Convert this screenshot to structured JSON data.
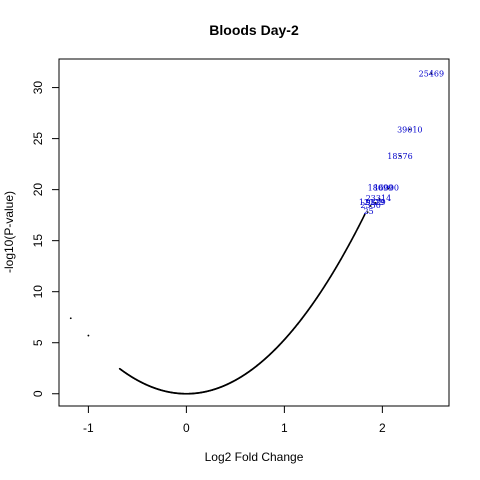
{
  "chart_data": {
    "type": "scatter",
    "title": "Bloods Day-2",
    "xlabel": "Log2 Fold Change",
    "ylabel": "-log10(P-value)",
    "xlim": [
      -1.3,
      2.68
    ],
    "ylim": [
      -1.2,
      32.8
    ],
    "xticks": [
      -1,
      0,
      1,
      2
    ],
    "yticks": [
      0,
      5,
      10,
      15,
      20,
      25,
      30
    ],
    "grid": false,
    "legend": "none",
    "point_color": "#000000",
    "label_color": "#0000cc",
    "isolated_points": [
      {
        "x": -1.18,
        "y": 7.4
      },
      {
        "x": -1.0,
        "y": 5.7
      },
      {
        "x": 1.85,
        "y": 17.8
      },
      {
        "x": 1.88,
        "y": 18.4
      },
      {
        "x": 1.93,
        "y": 18.7
      },
      {
        "x": 1.97,
        "y": 19.1
      },
      {
        "x": 2.06,
        "y": 20.1
      },
      {
        "x": 2.18,
        "y": 23.3
      },
      {
        "x": 2.28,
        "y": 25.9
      },
      {
        "x": 2.5,
        "y": 31.4
      }
    ],
    "labeled_points": [
      {
        "label": "25469",
        "x": 2.5,
        "y": 31.4
      },
      {
        "label": "39010",
        "x": 2.28,
        "y": 25.9
      },
      {
        "label": "18576",
        "x": 2.18,
        "y": 23.3
      },
      {
        "label": "18099",
        "x": 1.98,
        "y": 20.2
      },
      {
        "label": "16000",
        "x": 2.04,
        "y": 20.2
      },
      {
        "label": "23314",
        "x": 1.96,
        "y": 19.2
      },
      {
        "label": "12329",
        "x": 1.89,
        "y": 18.8
      },
      {
        "label": "9329",
        "x": 1.93,
        "y": 18.8
      },
      {
        "label": "2350",
        "x": 1.88,
        "y": 18.5
      },
      {
        "label": "25",
        "x": 1.86,
        "y": 17.9
      }
    ]
  }
}
